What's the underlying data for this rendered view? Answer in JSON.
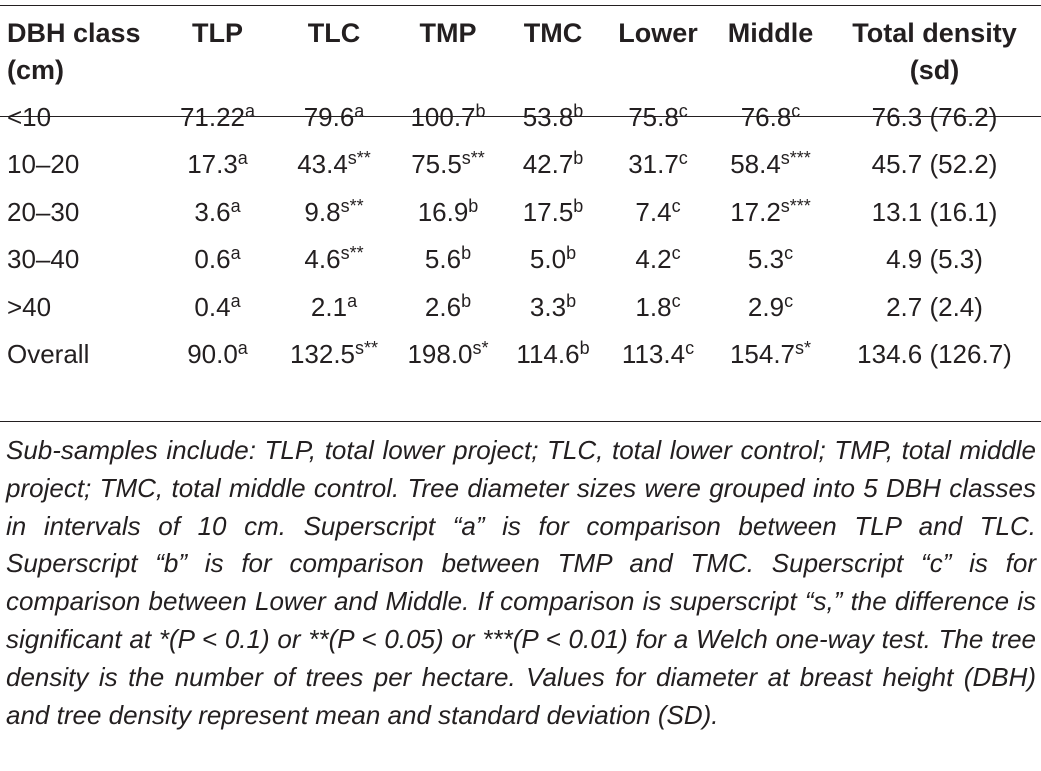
{
  "table": {
    "headers": [
      "DBH class (cm)",
      "TLP",
      "TLC",
      "TMP",
      "TMC",
      "Lower",
      "Middle",
      "Total density (sd)"
    ],
    "rows": [
      {
        "label": "<10",
        "cells": [
          {
            "v": "71.22",
            "s": "a"
          },
          {
            "v": "79.6",
            "s": "a"
          },
          {
            "v": "100.7",
            "s": "b"
          },
          {
            "v": "53.8",
            "s": "b"
          },
          {
            "v": "75.8",
            "s": "c"
          },
          {
            "v": "76.8",
            "s": "c"
          },
          {
            "v": "76.3 (76.2)",
            "s": ""
          }
        ]
      },
      {
        "label": "10–20",
        "cells": [
          {
            "v": "17.3",
            "s": "a"
          },
          {
            "v": "43.4",
            "s": "s**"
          },
          {
            "v": "75.5",
            "s": "s**"
          },
          {
            "v": "42.7",
            "s": "b"
          },
          {
            "v": "31.7",
            "s": "c"
          },
          {
            "v": "58.4",
            "s": "s***"
          },
          {
            "v": "45.7 (52.2)",
            "s": ""
          }
        ]
      },
      {
        "label": "20–30",
        "cells": [
          {
            "v": "3.6",
            "s": "a"
          },
          {
            "v": "9.8",
            "s": "s**"
          },
          {
            "v": "16.9",
            "s": "b"
          },
          {
            "v": "17.5",
            "s": "b"
          },
          {
            "v": "7.4",
            "s": "c"
          },
          {
            "v": "17.2",
            "s": "s***"
          },
          {
            "v": "13.1 (16.1)",
            "s": ""
          }
        ]
      },
      {
        "label": "30–40",
        "cells": [
          {
            "v": "0.6",
            "s": "a"
          },
          {
            "v": "4.6",
            "s": "s**"
          },
          {
            "v": "5.6",
            "s": "b"
          },
          {
            "v": "5.0",
            "s": "b"
          },
          {
            "v": "4.2",
            "s": "c"
          },
          {
            "v": "5.3",
            "s": "c"
          },
          {
            "v": "4.9 (5.3)",
            "s": ""
          }
        ]
      },
      {
        "label": ">40",
        "cells": [
          {
            "v": "0.4",
            "s": "a"
          },
          {
            "v": "2.1",
            "s": "a"
          },
          {
            "v": "2.6",
            "s": "b"
          },
          {
            "v": "3.3",
            "s": "b"
          },
          {
            "v": "1.8",
            "s": "c"
          },
          {
            "v": "2.9",
            "s": "c"
          },
          {
            "v": "2.7 (2.4)",
            "s": ""
          }
        ]
      },
      {
        "label": "Overall",
        "cells": [
          {
            "v": "90.0",
            "s": "a"
          },
          {
            "v": "132.5",
            "s": "s**"
          },
          {
            "v": "198.0",
            "s": "s*"
          },
          {
            "v": "114.6",
            "s": "b"
          },
          {
            "v": "113.4",
            "s": "c"
          },
          {
            "v": "154.7",
            "s": "s*"
          },
          {
            "v": "134.6 (126.7)",
            "s": ""
          }
        ]
      }
    ]
  },
  "caption": "Sub-samples include: TLP, total lower project; TLC, total lower control; TMP, total middle project; TMC, total middle control. Tree diameter sizes were grouped into 5 DBH classes in intervals of 10 cm. Superscript “a” is for comparison between TLP and TLC. Superscript “b” is for comparison between TMP and TMC. Superscript “c” is for comparison between Lower and Middle. If comparison is superscript “s,” the difference is significant at *(P < 0.1) or **(P < 0.05) or ***(P < 0.01) for a Welch one-way test. The tree density is the number of trees per hectare. Values for diameter at breast height (DBH) and tree density represent mean and standard deviation (SD)."
}
